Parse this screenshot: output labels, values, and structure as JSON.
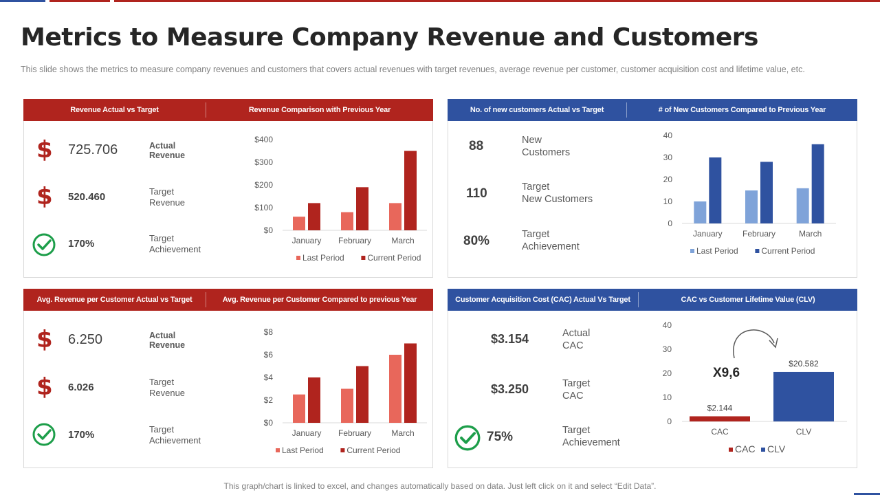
{
  "page": {
    "title": "Metrics to Measure Company Revenue and Customers",
    "subtitle": "This slide shows the metrics to measure  company revenues  and customers that covers  actual revenues  with target revenues,  average  revenue  per customer, customer acquisition cost and lifetime value,  etc.",
    "footer": "This graph/chart is linked to excel,  and changes automatically based on data. Just left click on it and select “Edit Data”."
  },
  "colors": {
    "red": "#b0241e",
    "light_red": "#e8675b",
    "blue": "#2f52a0",
    "light_blue": "#7fa3d9",
    "green": "#1d9e4a"
  },
  "panel1": {
    "header_left": "Revenue Actual vs Target",
    "header_right": "Revenue Comparison with Previous Year",
    "metrics": [
      {
        "icon": "dollar-icon",
        "value": "725.706",
        "label": "Actual\nRevenue"
      },
      {
        "icon": "dollar-icon",
        "value": "520.460",
        "label": "Target\nRevenue"
      },
      {
        "icon": "check-circle-icon",
        "value": "170%",
        "label": "Target\nAchievement"
      }
    ]
  },
  "panel2": {
    "header_left": "No. of new customers Actual vs Target",
    "header_right": "# of New Customers Compared to Previous Year",
    "metrics": [
      {
        "value": "88",
        "label": "New\nCustomers"
      },
      {
        "value": "110",
        "label": "Target\nNew Customers"
      },
      {
        "value": "80%",
        "label": " Target\nAchievement"
      }
    ]
  },
  "panel3": {
    "header_left": "Avg. Revenue per Customer Actual vs Target",
    "header_right": "Avg. Revenue per Customer Compared to previous Year",
    "metrics": [
      {
        "icon": "dollar-icon",
        "value": "6.250",
        "label": "Actual\nRevenue"
      },
      {
        "icon": "dollar-icon",
        "value": "6.026",
        "label": "Target\nRevenue"
      },
      {
        "icon": "check-circle-icon",
        "value": "170%",
        "label": "Target\nAchievement"
      }
    ]
  },
  "panel4": {
    "header_left": "Customer  Acquisition Cost (CAC) Actual Vs Target",
    "header_right": "CAC vs Customer Lifetime Value (CLV)",
    "metrics": [
      {
        "value": "$3.154",
        "label": "Actual\nCAC"
      },
      {
        "value": "$3.250",
        "label": "Target\nCAC"
      },
      {
        "icon": "check-circle-icon",
        "value": "75%",
        "label": " Target\nAchievement"
      }
    ],
    "multiplier": "X9,6"
  },
  "chart_data": [
    {
      "id": "chart1",
      "type": "bar",
      "title": "Revenue Comparison with Previous Year",
      "categories": [
        "January",
        "February",
        "March"
      ],
      "series": [
        {
          "name": "Last Period",
          "values": [
            60,
            80,
            120
          ],
          "color": "#e8675b"
        },
        {
          "name": "Current Period",
          "values": [
            120,
            190,
            350
          ],
          "color": "#b0241e"
        }
      ],
      "ylim": [
        0,
        400
      ],
      "ticks": [
        0,
        100,
        200,
        300,
        400
      ],
      "tick_labels": [
        "$0",
        "$100",
        "$200",
        "$300",
        "$400"
      ]
    },
    {
      "id": "chart2",
      "type": "bar",
      "title": "# of New Customers Compared to Previous Year",
      "categories": [
        "January",
        "February",
        "March"
      ],
      "series": [
        {
          "name": "Last Period",
          "values": [
            10,
            15,
            16
          ],
          "color": "#7fa3d9"
        },
        {
          "name": "Current Period",
          "values": [
            30,
            28,
            36
          ],
          "color": "#2f52a0"
        }
      ],
      "ylim": [
        0,
        40
      ],
      "ticks": [
        0,
        10,
        20,
        30,
        40
      ],
      "tick_labels": [
        "0",
        "10",
        "20",
        "30",
        "40"
      ]
    },
    {
      "id": "chart3",
      "type": "bar",
      "title": "Avg. Revenue per Customer Compared to previous Year",
      "categories": [
        "January",
        "February",
        "March"
      ],
      "series": [
        {
          "name": "Last Period",
          "values": [
            2.5,
            3,
            6
          ],
          "color": "#e8675b"
        },
        {
          "name": "Current Period",
          "values": [
            4,
            5,
            7
          ],
          "color": "#b0241e"
        }
      ],
      "ylim": [
        0,
        8
      ],
      "ticks": [
        0,
        2,
        4,
        6,
        8
      ],
      "tick_labels": [
        "$0",
        "$2",
        "$4",
        "$6",
        "$8"
      ]
    },
    {
      "id": "chart4",
      "type": "bar",
      "title": "CAC vs Customer Lifetime Value (CLV)",
      "categories": [
        "CAC",
        "CLV"
      ],
      "values": [
        2.144,
        20.582
      ],
      "data_labels": [
        "$2.144",
        "$20.582"
      ],
      "colors": [
        "#b0241e",
        "#2f52a0"
      ],
      "legend": [
        "CAC",
        "CLV"
      ],
      "ylim": [
        0,
        40
      ],
      "ticks": [
        0,
        10,
        20,
        30,
        40
      ],
      "tick_labels": [
        "0",
        "10",
        "20",
        "30",
        "40"
      ]
    }
  ]
}
